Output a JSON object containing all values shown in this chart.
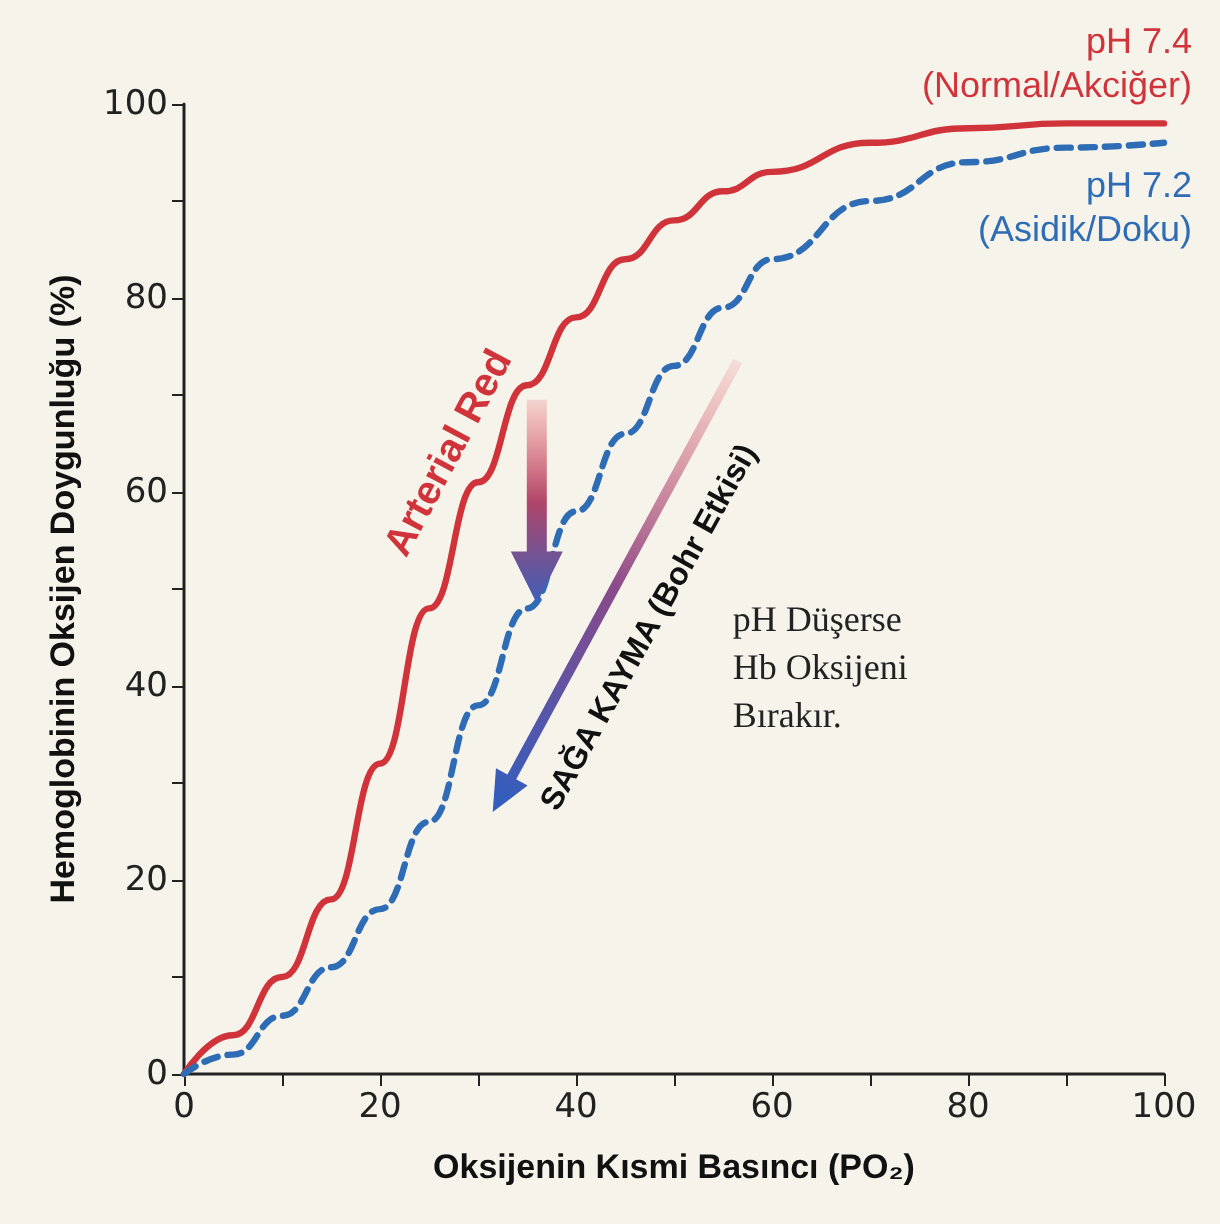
{
  "chart_data": {
    "type": "line",
    "xlabel": "Oksijenin Kısmi Basıncı (PO₂)",
    "ylabel": "Hemoglobinin Oksijen Doygunluğu (%)",
    "xlim": [
      0,
      100
    ],
    "ylim": [
      0,
      100
    ],
    "xticks": [
      0,
      {
        "value": 10,
        "label": null
      },
      20,
      {
        "value": 30,
        "label": null
      },
      40,
      {
        "value": 50,
        "label": null
      },
      60,
      {
        "value": 70,
        "label": null
      },
      80,
      {
        "value": 90,
        "label": null
      },
      100
    ],
    "yticks": [
      0,
      {
        "value": 10,
        "label": null
      },
      20,
      {
        "value": 30,
        "label": null
      },
      40,
      {
        "value": 50,
        "label": null
      },
      60,
      {
        "value": 70,
        "label": null
      },
      80,
      {
        "value": 90,
        "label": null
      },
      100
    ],
    "grid": false,
    "legend": false,
    "marker": "none",
    "series": [
      {
        "name": "pH 7.4 (Normal/Akciğer)",
        "color": "#d0343a",
        "line_style": "solid",
        "x": [
          0,
          5,
          10,
          15,
          20,
          25,
          30,
          35,
          40,
          45,
          50,
          55,
          60,
          70,
          80,
          90,
          100
        ],
        "values": [
          0,
          4,
          10,
          18,
          32,
          48,
          61,
          71,
          78,
          84,
          88,
          91,
          93,
          96,
          97.5,
          98,
          98
        ]
      },
      {
        "name": "pH 7.2 (Asidik/Doku)",
        "color": "#2e6db5",
        "line_style": "dashed",
        "x": [
          0,
          5,
          10,
          15,
          20,
          25,
          30,
          35,
          40,
          45,
          50,
          55,
          60,
          70,
          80,
          90,
          100
        ],
        "values": [
          0,
          2,
          6,
          11,
          17,
          26,
          38,
          48,
          58,
          66,
          73,
          79,
          84,
          90,
          94,
          95.5,
          96
        ]
      }
    ],
    "annotations": [
      "Arterial Red",
      "SAĞA KAYMA (Bohr Etkisi)",
      "pH Düşerse Hb Oksijeni Bırakır."
    ]
  }
}
